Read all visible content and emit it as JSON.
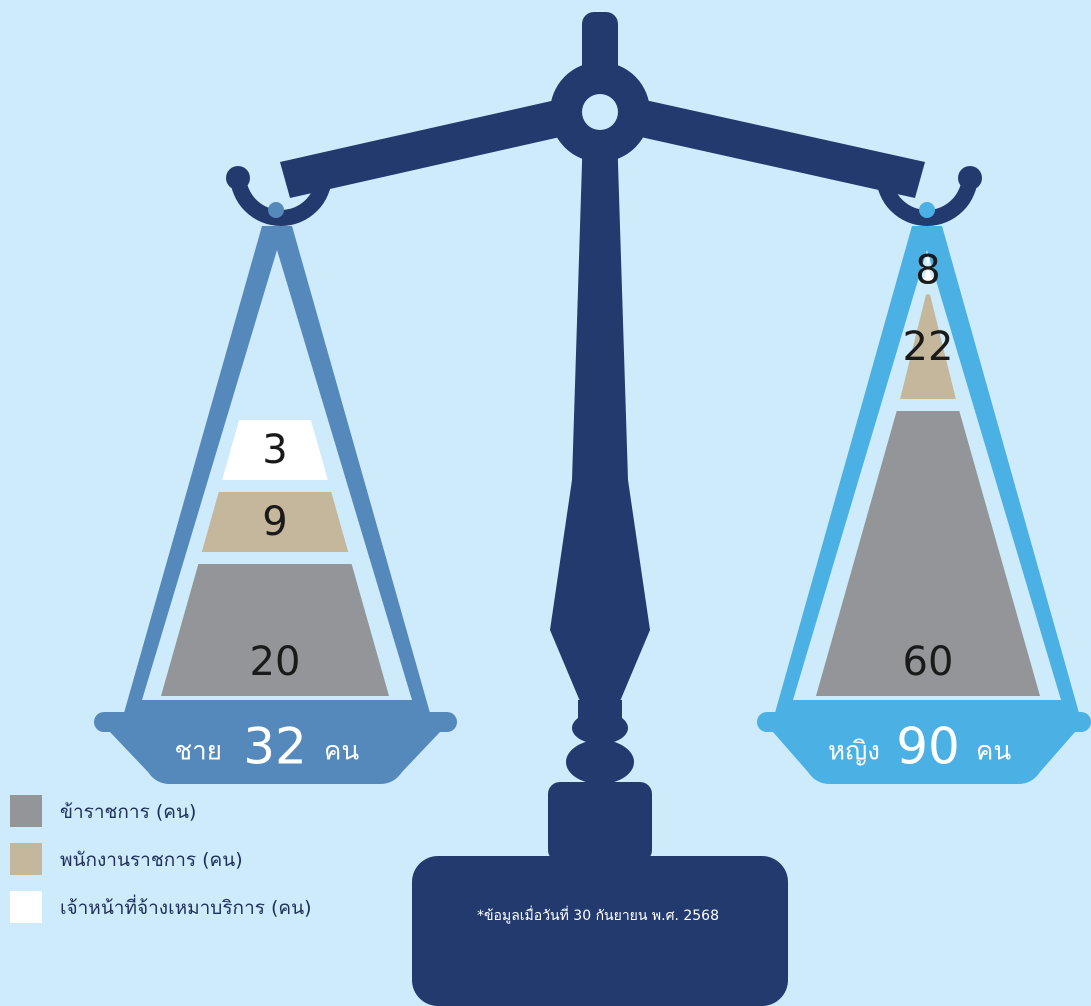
{
  "chart_data": {
    "type": "bar",
    "categories": [
      "ชาย",
      "หญิง"
    ],
    "unit": "คน",
    "series": [
      {
        "name": "ข้าราชการ (คน)",
        "color": "#939598",
        "values": [
          20,
          60
        ]
      },
      {
        "name": "พนักงานราชการ (คน)",
        "color": "#c4b79c",
        "values": [
          9,
          22
        ]
      },
      {
        "name": "เจ้าหน้าที่จ้างเหมาบริการ (คน)",
        "color": "#ffffff",
        "values": [
          3,
          8
        ]
      }
    ],
    "totals": [
      {
        "label": "ชาย",
        "value": "32",
        "unit": "คน"
      },
      {
        "label": "หญิง",
        "value": "90",
        "unit": "คน"
      }
    ],
    "note": "*ข้อมูลเมื่อวันที่ 30 กันยายน พ.ศ. 2568",
    "legend_position": "bottom-left"
  },
  "colors": {
    "background": "#cdebfb",
    "stand": "#233a6e",
    "left_pan": "#5589bb",
    "right_pan": "#4bb0e3",
    "label_text": "#1f2f5a"
  }
}
